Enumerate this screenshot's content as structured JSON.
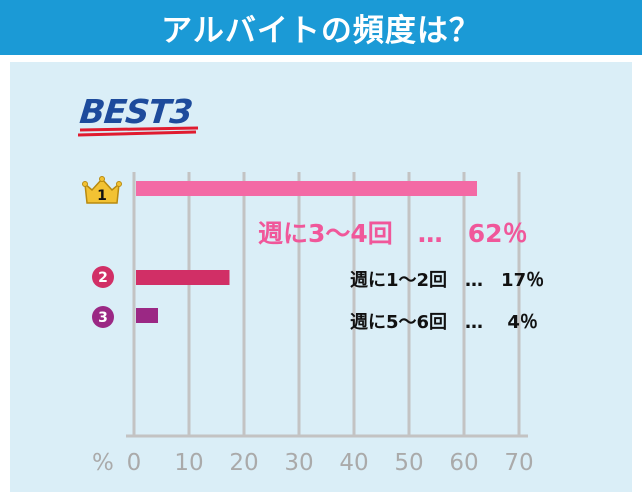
{
  "title": "アルバイトの頻度は？",
  "badge": "BEST3",
  "colors": {
    "header": "#1b9ad6",
    "panel": "#daeef7",
    "grid": "#c3c3c3",
    "bar_1": "#f36aa5",
    "bar_2": "#d12f66",
    "bar_3": "#9b2884",
    "crown": "#f2c233",
    "best_text": "#1d4b9c",
    "best_underline": "#e01b2f"
  },
  "chart_data": {
    "type": "bar",
    "orientation": "horizontal",
    "title": "アルバイトの頻度は？",
    "xlabel": "%",
    "xlim": [
      0,
      70
    ],
    "x_ticks": [
      "0",
      "10",
      "20",
      "30",
      "40",
      "50",
      "60",
      "70"
    ],
    "grid": true,
    "categories": [
      "週に3～4回",
      "週に1～2回",
      "週に5～6回"
    ],
    "values": [
      62,
      17,
      4
    ],
    "ranks": [
      "1",
      "2",
      "3"
    ],
    "labels": [
      "週に3～4回　…　62％",
      "週に1～2回　…　17％",
      "週に5～6回　…　 4％"
    ]
  }
}
